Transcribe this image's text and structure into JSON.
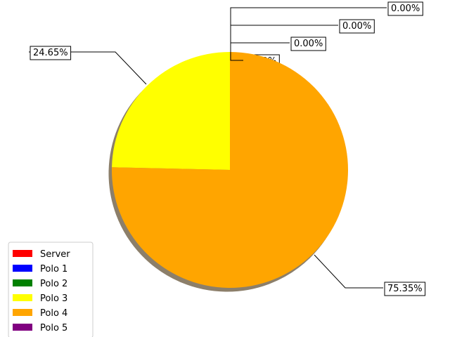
{
  "chart_data": {
    "type": "pie",
    "shadow": true,
    "start_angle_deg": 90,
    "direction": "counterclockwise",
    "legend_position": "lower-left",
    "slices": [
      {
        "label": "Server",
        "value": 0.0,
        "value_label": "0.00%",
        "color": "#ff0000"
      },
      {
        "label": "Polo 1",
        "value": 0.0,
        "value_label": "0.00%",
        "color": "#0000ff"
      },
      {
        "label": "Polo 2",
        "value": 0.0,
        "value_label": "0.00%",
        "color": "#008000"
      },
      {
        "label": "Polo 3",
        "value": 24.65,
        "value_label": "24.65%",
        "color": "#ffff00"
      },
      {
        "label": "Polo 4",
        "value": 75.35,
        "value_label": "75.35%",
        "color": "#ffa500"
      },
      {
        "label": "Polo 5",
        "value": 0.0,
        "value_label": "0.00%",
        "color": "#800080"
      }
    ]
  }
}
